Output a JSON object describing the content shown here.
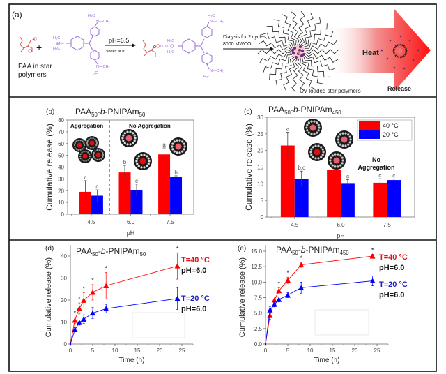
{
  "panel_a": {
    "label": "(a)",
    "reactant1_caption_line1": "PAA in star",
    "reactant1_caption_line2": "polymers",
    "plus": "+",
    "arrow1_top": "pH=6.5",
    "arrow1_bottom": "Vortex at rt.",
    "arrow2_top_line1": "Dialysis for 2 cycles,",
    "arrow2_top_line2": "8000 MWCO",
    "star_caption": "CV loaded star polymers",
    "heat_label": "Heat",
    "release_label": "Release",
    "cv_groups": {
      "h3c": "H3C",
      "ch3": "CH3",
      "n": "N"
    },
    "colors": {
      "paa": "#e05050",
      "cv": "#9a6ad8",
      "arrow_red": "#ff1a1a",
      "particle": "#6a2a7a"
    }
  },
  "chart_data": [
    {
      "id": "b",
      "type": "bar",
      "panel_label": "(b)",
      "title": "PAA50-b-PNIPAm50",
      "title_parts": {
        "base": "PAA",
        "sub1": "50",
        "mid": "-",
        "italic": "b",
        "mid2": "-PNIPAm",
        "sub2": "50"
      },
      "xlabel": "pH",
      "ylabel": "Cumulative release (%)",
      "categories": [
        "4.5",
        "6.0",
        "7.5"
      ],
      "ylim": [
        0,
        80
      ],
      "yticks": [
        0,
        10,
        20,
        30,
        40,
        50,
        60,
        70,
        80
      ],
      "series": [
        {
          "name": "40 °C",
          "color": "#ff0000",
          "values": [
            19,
            35.5,
            50.8
          ],
          "errors": [
            9.5,
            6,
            5.5
          ],
          "letters": [
            "c",
            "b",
            "a"
          ]
        },
        {
          "name": "20 °C",
          "color": "#0000ff",
          "values": [
            15.7,
            20.6,
            31.6
          ],
          "errors": [
            5,
            5,
            1
          ],
          "letters": [
            "c",
            "c",
            "b"
          ]
        }
      ],
      "annotations": [
        "Aggregation",
        "No Aggregation"
      ],
      "divider": "dashed line between pH 4.5 and 6.0",
      "legend": null
    },
    {
      "id": "c",
      "type": "bar",
      "panel_label": "(c)",
      "title": "PAA50-b-PNIPAm450",
      "title_parts": {
        "base": "PAA",
        "sub1": "50",
        "mid": "-",
        "italic": "b",
        "mid2": "-PNIPAm",
        "sub2": "450"
      },
      "xlabel": "pH",
      "ylabel": "Cumulative release (%)",
      "categories": [
        "4.5",
        "6.0",
        "7.5"
      ],
      "ylim": [
        0,
        30
      ],
      "yticks": [
        0,
        5,
        10,
        15,
        20,
        25,
        30
      ],
      "series": [
        {
          "name": "40 °C",
          "color": "#ff0000",
          "values": [
            21.5,
            14.2,
            10.3
          ],
          "errors": [
            4,
            0.4,
            1.2
          ],
          "letters": [
            "a",
            "b",
            "c"
          ]
        },
        {
          "name": "20 °C",
          "color": "#0000ff",
          "values": [
            11.5,
            10.2,
            11.1
          ],
          "errors": [
            2.3,
            1,
            0.3
          ],
          "letters": [
            "b,c",
            "c",
            "c"
          ]
        }
      ],
      "annotations": [
        "No",
        "Aggregation"
      ],
      "legend": "top-right"
    },
    {
      "id": "d",
      "type": "line",
      "panel_label": "(d)",
      "title": "PAA50-b-PNIPAm50",
      "title_parts": {
        "base": "PAA",
        "sub1": "50",
        "mid": "-",
        "italic": "b",
        "mid2": "-PNIPAm",
        "sub2": "50"
      },
      "xlabel": "Time (h)",
      "ylabel": "Cumulative release (%)",
      "xlim": [
        0,
        27.5
      ],
      "ylim": [
        0,
        45
      ],
      "xticks": [
        0,
        5,
        10,
        15,
        20,
        25
      ],
      "yticks": [
        0,
        10,
        20,
        30,
        40
      ],
      "x": [
        0,
        1,
        2,
        3,
        5,
        8,
        24
      ],
      "series": [
        {
          "name": "T=40 °C",
          "sub": "pH=6.0",
          "color": "#ff0000",
          "values": [
            0,
            10.8,
            16.2,
            19.9,
            23.5,
            26.5,
            35.5
          ],
          "errors": [
            0,
            1.5,
            2.5,
            3.5,
            3.5,
            6,
            6
          ],
          "significance": [
            "",
            "*",
            "*",
            "*",
            "*",
            "*",
            "*"
          ]
        },
        {
          "name": "T=20 °C",
          "sub": "pH=6.0",
          "color": "#0000ff",
          "values": [
            0,
            6.5,
            9.8,
            11.3,
            14.1,
            16.1,
            20.7
          ],
          "errors": [
            0,
            1,
            1.2,
            2,
            2.5,
            2,
            5
          ],
          "significance": [
            "",
            "",
            "",
            "",
            "",
            "",
            ""
          ]
        }
      ],
      "legend": "right"
    },
    {
      "id": "e",
      "type": "line",
      "panel_label": "(e)",
      "title": "PAA50-b-PNIPAm450",
      "title_parts": {
        "base": "PAA",
        "sub1": "50",
        "mid": "-",
        "italic": "b",
        "mid2": "-PNIPAm",
        "sub2": "450"
      },
      "xlabel": "Time (h)",
      "ylabel": "Cumulative release (%)",
      "xlim": [
        0,
        27.5
      ],
      "ylim": [
        0,
        16
      ],
      "xticks": [
        0,
        5,
        10,
        15,
        20,
        25
      ],
      "yticks": [
        "0.0",
        "2.5",
        "5.0",
        "7.5",
        "10.0",
        "12.5",
        "15.0"
      ],
      "yticks_values": [
        0,
        2.5,
        5,
        7.5,
        10,
        12.5,
        15
      ],
      "x": [
        0,
        1,
        2,
        3,
        5,
        8,
        24
      ],
      "series": [
        {
          "name": "T=40 °C",
          "sub": "pH=6.0",
          "color": "#ff0000",
          "values": [
            0,
            4.6,
            7.1,
            8.6,
            10.3,
            12.8,
            14.2
          ],
          "errors": [
            0,
            0.6,
            0.5,
            0.5,
            0.5,
            0.4,
            0.3
          ],
          "significance": [
            "",
            "",
            "",
            "*",
            "*",
            "*",
            "*"
          ]
        },
        {
          "name": "T=20 °C",
          "sub": "pH=6.0",
          "color": "#0000ff",
          "values": [
            0,
            5.5,
            6.4,
            7.2,
            7.9,
            9.1,
            10.2
          ],
          "errors": [
            0,
            0.5,
            0.4,
            0.4,
            0.4,
            0.9,
            0.8
          ],
          "significance": [
            "",
            "",
            "",
            "",
            "",
            "",
            ""
          ]
        }
      ],
      "legend": "right"
    }
  ]
}
